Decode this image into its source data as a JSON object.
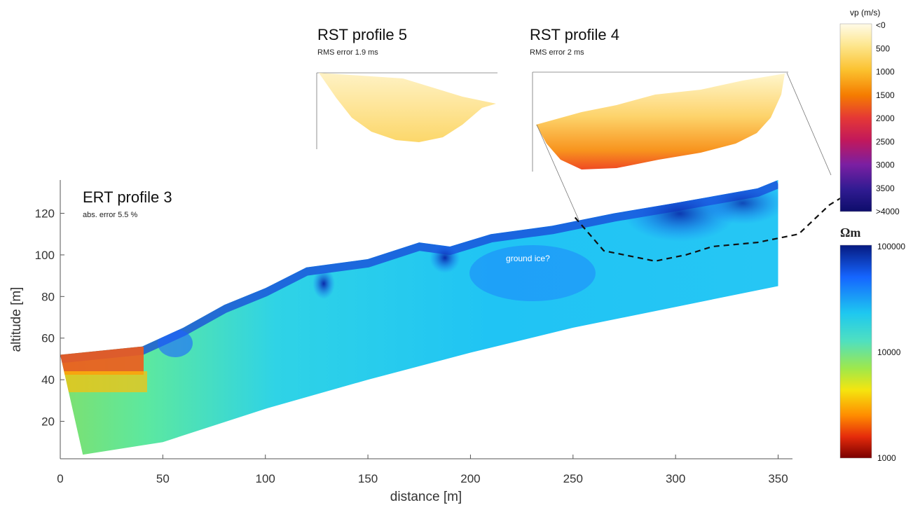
{
  "chart_data": {
    "type": "heatmap",
    "ert": {
      "title": "ERT profile 3",
      "subtitle": "abs. error 5.5 %",
      "xlabel": "distance [m]",
      "ylabel": "altitude [m]",
      "xlim": [
        0,
        357
      ],
      "ylim": [
        2,
        136
      ],
      "xticks": [
        "0",
        "50",
        "100",
        "150",
        "200",
        "250",
        "300",
        "350"
      ],
      "xtick_values": [
        0,
        50,
        100,
        150,
        200,
        250,
        300,
        350
      ],
      "yticks": [
        "20",
        "40",
        "60",
        "80",
        "100",
        "120"
      ],
      "ytick_values": [
        20,
        40,
        60,
        80,
        100,
        120
      ],
      "surface": [
        [
          0,
          52
        ],
        [
          40,
          56
        ],
        [
          60,
          65
        ],
        [
          80,
          76
        ],
        [
          100,
          84
        ],
        [
          120,
          94
        ],
        [
          150,
          98
        ],
        [
          175,
          106
        ],
        [
          190,
          104
        ],
        [
          210,
          110
        ],
        [
          240,
          114
        ],
        [
          270,
          120
        ],
        [
          300,
          125
        ],
        [
          340,
          132
        ],
        [
          350,
          136
        ]
      ],
      "bottom": [
        [
          350,
          85
        ],
        [
          300,
          75
        ],
        [
          250,
          65
        ],
        [
          200,
          53
        ],
        [
          150,
          40
        ],
        [
          100,
          26
        ],
        [
          50,
          10
        ],
        [
          11,
          4
        ]
      ],
      "annotation": "ground ice?",
      "annotation_pos": [
        228,
        97
      ],
      "boundary_dashed": [
        [
          251,
          118
        ],
        [
          265,
          102
        ],
        [
          290,
          97
        ],
        [
          305,
          100
        ],
        [
          318,
          104
        ],
        [
          340,
          106
        ],
        [
          360,
          110
        ],
        [
          375,
          124
        ],
        [
          385,
          130
        ]
      ]
    },
    "rst": [
      {
        "title": "RST profile 5",
        "subtitle": "RMS error 1.9 ms",
        "scale": "vp"
      },
      {
        "title": "RST profile 4",
        "subtitle": "RMS error 2 ms",
        "scale": "vp"
      }
    ],
    "colorbar_vp": {
      "title": "vp (m/s)",
      "labels": [
        "<0",
        "500",
        "1000",
        "1500",
        "2000",
        "2500",
        "3000",
        "3500",
        ">4000"
      ],
      "colors": [
        "#fffbe8",
        "#fde58a",
        "#fbc02d",
        "#f57c00",
        "#e53935",
        "#c2185b",
        "#7b1fa2",
        "#311b92",
        "#0d0d6b"
      ]
    },
    "colorbar_res": {
      "title": "Ωm",
      "labels": [
        "100000",
        "10000",
        "1000"
      ],
      "colors": [
        "#061a80",
        "#1565ff",
        "#1ec8f0",
        "#4fe0c0",
        "#a0e84a",
        "#f5e50f",
        "#ff8c00",
        "#e52b0b",
        "#7a0000"
      ]
    }
  }
}
